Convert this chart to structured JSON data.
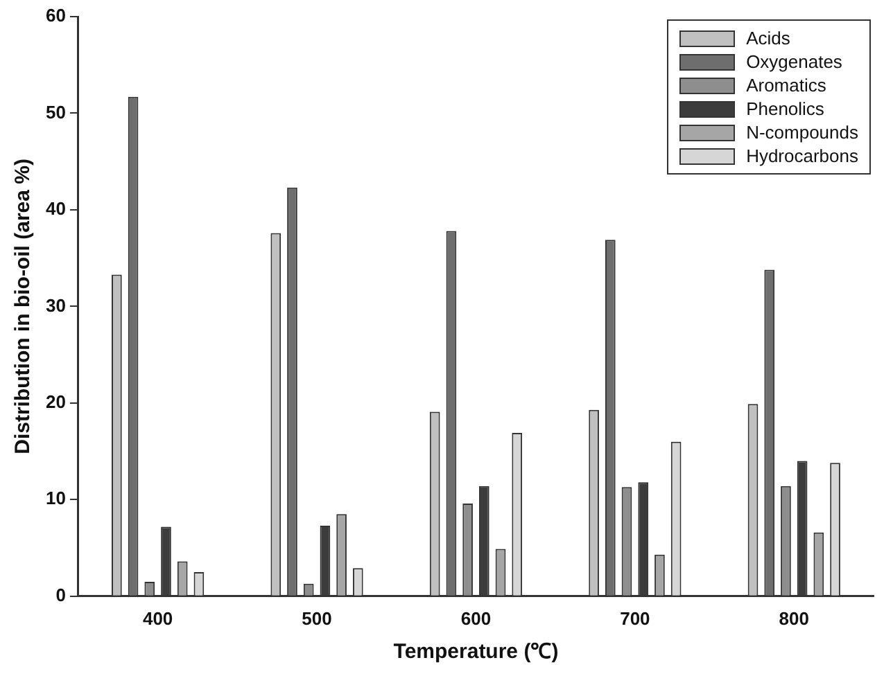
{
  "chart_data": {
    "type": "bar",
    "xlabel": "Temperature (℃)",
    "ylabel": "Distribution in bio-oil (area %)",
    "categories": [
      "400",
      "500",
      "600",
      "700",
      "800"
    ],
    "series": [
      {
        "name": "Acids",
        "color": "#c0c0c0",
        "values": [
          33.3,
          37.6,
          19.1,
          19.3,
          19.9
        ]
      },
      {
        "name": "Oxygenates",
        "color": "#6e6e6e",
        "values": [
          51.7,
          42.3,
          37.8,
          36.9,
          33.8
        ]
      },
      {
        "name": "Aromatics",
        "color": "#8e8e8e",
        "values": [
          1.5,
          1.3,
          9.6,
          11.3,
          11.4
        ]
      },
      {
        "name": "Phenolics",
        "color": "#3c3c3c",
        "values": [
          7.2,
          7.3,
          11.4,
          11.8,
          14.0
        ]
      },
      {
        "name": "N-compounds",
        "color": "#a6a6a6",
        "values": [
          3.6,
          8.5,
          4.9,
          4.3,
          6.6
        ]
      },
      {
        "name": "Hydrocarbons",
        "color": "#d6d6d6",
        "values": [
          2.5,
          2.9,
          16.9,
          16.0,
          13.8
        ]
      }
    ],
    "ylim": [
      0,
      60
    ],
    "yticks": [
      0,
      10,
      20,
      30,
      40,
      50,
      60
    ],
    "grid": false,
    "legend": "top right"
  }
}
